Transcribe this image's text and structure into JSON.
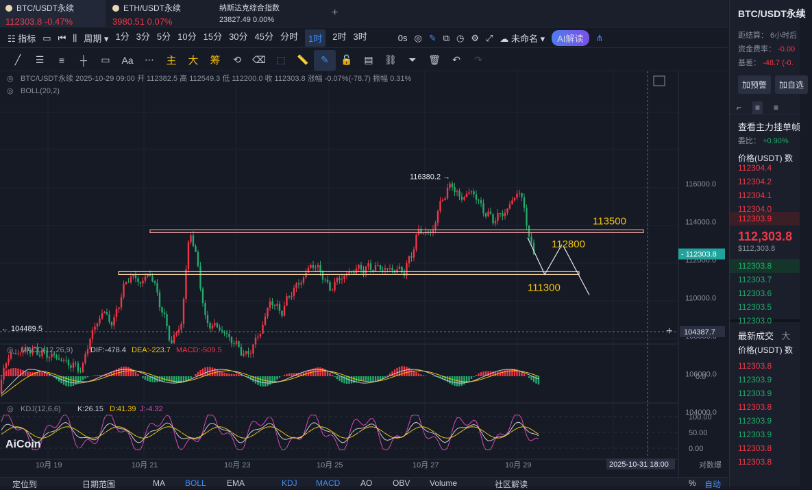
{
  "tabs": [
    {
      "name": "BTC/USDT永续",
      "price": "112303.8",
      "change": "-0.47%"
    },
    {
      "name": "ETH/USDT永续",
      "price": "3980.51",
      "change": "0.07%"
    },
    {
      "name": "纳斯达克综合指数",
      "price": "23827.49",
      "change": "0.00%"
    }
  ],
  "toolbar": {
    "indicator": "指标",
    "period": "周期",
    "intervals": [
      "1分",
      "3分",
      "5分",
      "10分",
      "15分",
      "30分",
      "45分",
      "分时",
      "1时",
      "2时",
      "3时"
    ],
    "selected_interval": "1时",
    "zero": "0s",
    "layout": "未命名",
    "ai": "AI解读"
  },
  "drawtools": {
    "main": "主",
    "big": "大",
    "chip": "筹"
  },
  "chart": {
    "info": "BTC/USDT永续  2025-10-29 09:00  开 112382.5  高 112549.3  低 112200.0  收 112303.8  涨幅 -0.07%(-78.7)  振幅 0.31%",
    "boll": "BOLL(20,2)",
    "macd_label": "MACD(12,26,9)",
    "macd_dif": "DIF:-478.4",
    "macd_dea": "DEA:-223.7",
    "macd_val": "MACD:-509.5",
    "kdj_label": "KDJ(12,6,6)",
    "kdj_k": "K:26.15",
    "kdj_d": "D:41.39",
    "kdj_j": "J:-4.32",
    "watermark": "AiCoin",
    "current_price": "112303.8",
    "crosshair_price": "104387.7",
    "crosshair_time": "2025-10-31 18:00",
    "high_label": "116380.2",
    "low_label": "104489.5",
    "annotations": [
      "113500",
      "112800",
      "111300"
    ],
    "y_ticks": [
      "116000.0",
      "114000.0",
      "112000.0",
      "110000.0",
      "108000.0",
      "106000.0",
      "104000.0"
    ],
    "macd_ticks": [
      "0.0"
    ],
    "kdj_ticks": [
      "100.00",
      "50.00",
      "0.00"
    ],
    "x_ticks": [
      "10月 19",
      "10月 21",
      "10月 23",
      "10月 25",
      "10月 27",
      "10月 29"
    ],
    "x_right": [
      "对数",
      "爆"
    ],
    "colors": {
      "up": "#f23645",
      "down": "#22ab6b",
      "bg": "#161a25"
    }
  },
  "bottom": {
    "items": [
      "定位到",
      "日期范围",
      "MA",
      "BOLL",
      "EMA",
      "KDJ",
      "MACD",
      "AO",
      "OBV",
      "Volume",
      "社区解读",
      "%",
      "自动"
    ]
  },
  "sidebar": {
    "title": "BTC/USDT永续",
    "settle": "距结算：  6小时后",
    "funding": "资金费率：",
    "funding_val": "-0.00",
    "basis": "基差：",
    "basis_val": "-48.7 (-0.",
    "alert": "加预警",
    "add": "加自选",
    "depth_title": "查看主力挂单帧",
    "ratio": "委比：",
    "ratio_val": "+0.90%",
    "price_hdr": "价格(USDT)  数",
    "asks": [
      "112304.4",
      "112304.2",
      "112304.1",
      "112304.0",
      "112303.9"
    ],
    "last_price": "112,303.8",
    "last_usd": "$112,303.8",
    "bids": [
      "112303.8",
      "112303.7",
      "112303.6",
      "112303.5",
      "112303.0"
    ],
    "trades_tab": "最新成交",
    "trades_tab2": "大",
    "trades_hdr": "价格(USDT)  数",
    "trades": [
      {
        "p": "112303.8",
        "s": "sell"
      },
      {
        "p": "112303.9",
        "s": "buy"
      },
      {
        "p": "112303.9",
        "s": "buy"
      },
      {
        "p": "112303.8",
        "s": "sell"
      },
      {
        "p": "112303.9",
        "s": "buy"
      },
      {
        "p": "112303.9",
        "s": "buy"
      },
      {
        "p": "112303.8",
        "s": "sell"
      },
      {
        "p": "112303.8",
        "s": "sell"
      }
    ]
  }
}
